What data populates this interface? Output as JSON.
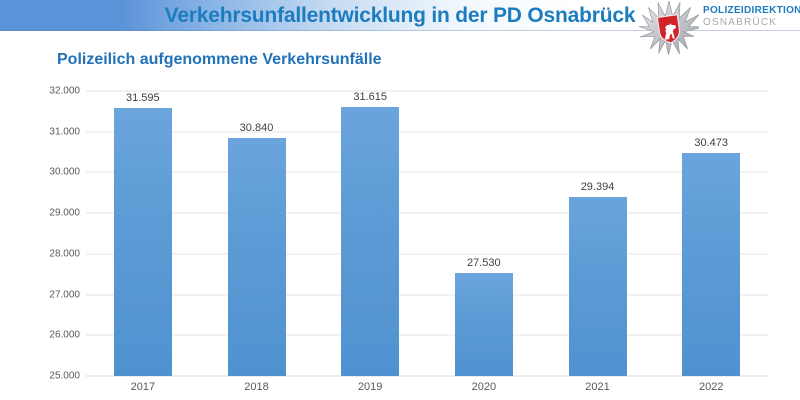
{
  "header": {
    "title": "Verkehrsunfallentwicklung in der PD Osnabrück",
    "logo": {
      "icon": "niedersachsen-police-star",
      "org_line1": "POLIZEIDIREKTION",
      "org_line2": "OSNABRÜCK"
    }
  },
  "chart_data": {
    "type": "bar",
    "title": "Polizeilich aufgenommene Verkehrsunfälle",
    "categories": [
      "2017",
      "2018",
      "2019",
      "2020",
      "2021",
      "2022"
    ],
    "values": [
      31595,
      30840,
      31615,
      27530,
      29394,
      30473
    ],
    "value_labels": [
      "31.595",
      "30.840",
      "31.615",
      "27.530",
      "29.394",
      "30.473"
    ],
    "xlabel": "",
    "ylabel": "",
    "ylim": [
      25000,
      32000
    ],
    "ytick_step": 1000,
    "ytick_labels": [
      "25.000",
      "26.000",
      "27.000",
      "28.000",
      "29.000",
      "30.000",
      "31.000",
      "32.000"
    ],
    "grid": true,
    "legend": false
  },
  "colors": {
    "band_blue": "#5b93d8",
    "title_blue": "#1c7cc0",
    "subtitle_blue": "#2272b9",
    "bar_blue": "#5b9bd5",
    "grid_gray": "#e4e4e4",
    "axis_text_gray": "#595959",
    "value_text_gray": "#404040",
    "shield_red": "#d2232a"
  }
}
